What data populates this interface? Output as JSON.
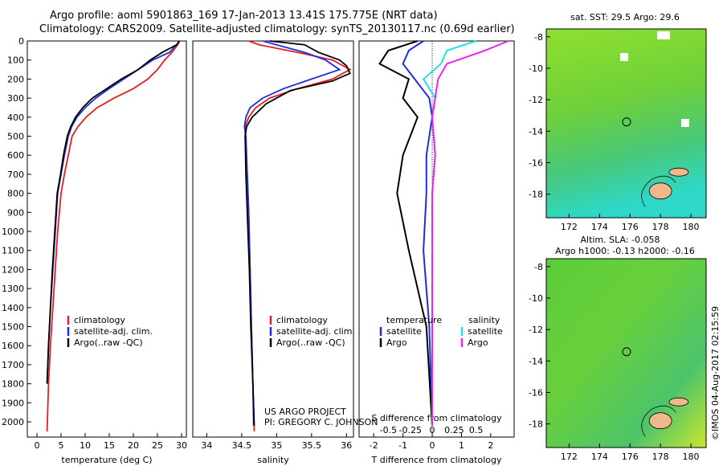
{
  "header": {
    "title_line1": "Argo profile: aoml 5901863_169 17-Jan-2013 13.41S 175.775E (NRT data)",
    "title_line2": "Climatology: CARS2009. Satellite-adjusted climatology: synTS_20130117.nc (0.69d earlier)"
  },
  "colors": {
    "climatology": "#e02020",
    "satellite": "#1f2de0",
    "argo": "#000000",
    "sat_salinity": "#22e0e8",
    "argo_salinity": "#ee22ee"
  },
  "chart_data": [
    {
      "type": "line",
      "name": "temperature",
      "xlabel": "temperature (deg C)",
      "ylabel": "",
      "xlim": [
        -2,
        31
      ],
      "ylim": [
        2080,
        0
      ],
      "xticks": [
        "0",
        "5",
        "10",
        "15",
        "20",
        "25",
        "30"
      ],
      "xtick_values": [
        0,
        5,
        10,
        15,
        20,
        25,
        30
      ],
      "yticks": [
        "0",
        "100",
        "200",
        "300",
        "400",
        "500",
        "600",
        "700",
        "800",
        "900",
        "1000",
        "1100",
        "1200",
        "1300",
        "1400",
        "1500",
        "1600",
        "1700",
        "1800",
        "1900",
        "2000"
      ],
      "ytick_values": [
        0,
        100,
        200,
        300,
        400,
        500,
        600,
        700,
        800,
        900,
        1000,
        1100,
        1200,
        1300,
        1400,
        1500,
        1600,
        1700,
        1800,
        1900,
        2000
      ],
      "legend": [
        "climatology",
        "satellite-adj. clim.",
        "Argo(..raw -QC)"
      ],
      "series": [
        {
          "name": "climatology",
          "x": [
            29.6,
            29.2,
            28.0,
            26.5,
            25.0,
            23.0,
            20.0,
            16.0,
            12.5,
            10.2,
            8.5,
            7.3,
            6.5,
            5.7,
            5.0,
            4.3,
            3.8,
            3.3,
            2.8,
            2.4,
            2.1
          ],
          "y": [
            0,
            20,
            60,
            100,
            150,
            200,
            250,
            300,
            350,
            400,
            450,
            500,
            600,
            700,
            800,
            1000,
            1200,
            1400,
            1600,
            1800,
            2050
          ]
        },
        {
          "name": "satellite-adj. clim.",
          "x": [
            29.6,
            29.0,
            27.5,
            24.0,
            21.0,
            18.0,
            15.0,
            12.2,
            10.0,
            8.3,
            7.2,
            6.5,
            5.7,
            5.0,
            4.3,
            3.8,
            3.3,
            2.8,
            2.4,
            2.1
          ],
          "y": [
            0,
            20,
            60,
            100,
            150,
            200,
            250,
            300,
            350,
            400,
            450,
            500,
            600,
            700,
            800,
            1000,
            1200,
            1400,
            1600,
            1800
          ]
        },
        {
          "name": "Argo(..raw -QC)",
          "x": [
            29.5,
            29.0,
            26.0,
            23.5,
            21.0,
            17.5,
            14.5,
            11.5,
            9.5,
            8.0,
            7.0,
            6.3,
            5.5,
            4.9,
            4.2,
            3.7,
            3.2,
            2.8,
            2.4,
            2.1
          ],
          "y": [
            0,
            20,
            60,
            100,
            150,
            200,
            250,
            300,
            350,
            400,
            450,
            500,
            600,
            700,
            800,
            1000,
            1200,
            1400,
            1600,
            1800
          ]
        }
      ]
    },
    {
      "type": "line",
      "name": "salinity",
      "xlabel": "salinity",
      "ylabel": "",
      "xlim": [
        33.8,
        36.1
      ],
      "ylim": [
        2080,
        0
      ],
      "xticks": [
        "34",
        "34.5",
        "35",
        "35.5",
        "36"
      ],
      "xtick_values": [
        34,
        34.5,
        35,
        35.5,
        36
      ],
      "legend": [
        "climatology",
        "satellite-adj. clim.",
        "Argo(..raw -QC)"
      ],
      "annotation_line1": "US ARGO PROJECT",
      "annotation_line2": "PI: GREGORY C. JOHNSON",
      "series": [
        {
          "name": "climatology",
          "x": [
            34.6,
            34.75,
            35.3,
            35.8,
            36.05,
            35.8,
            35.3,
            34.9,
            34.7,
            34.6,
            34.55,
            34.55,
            34.58,
            34.6,
            34.62,
            34.64,
            34.66,
            34.68
          ],
          "y": [
            0,
            20,
            60,
            100,
            150,
            200,
            250,
            300,
            350,
            400,
            450,
            500,
            700,
            900,
            1200,
            1500,
            1800,
            2050
          ]
        },
        {
          "name": "satellite-adj. clim.",
          "x": [
            34.8,
            35.0,
            35.4,
            35.7,
            35.9,
            35.5,
            35.1,
            34.8,
            34.62,
            34.56,
            34.54,
            34.56,
            34.58,
            34.6,
            34.62,
            34.64,
            34.66,
            34.67
          ],
          "y": [
            0,
            20,
            60,
            100,
            150,
            200,
            250,
            300,
            350,
            400,
            450,
            500,
            700,
            900,
            1200,
            1500,
            1800,
            2020
          ]
        },
        {
          "name": "Argo(..raw -QC)",
          "x": [
            34.9,
            35.4,
            35.6,
            35.9,
            36.0,
            36.05,
            35.8,
            35.2,
            34.85,
            34.65,
            34.57,
            34.55,
            34.56,
            34.58,
            34.61,
            34.63,
            34.66,
            34.68
          ],
          "y": [
            0,
            20,
            60,
            100,
            130,
            170,
            210,
            260,
            330,
            400,
            450,
            500,
            700,
            900,
            1200,
            1500,
            1800,
            2020
          ]
        }
      ]
    },
    {
      "type": "line",
      "name": "difference",
      "xlabel": "T difference from climatology",
      "ylabel": "",
      "top_label": "S difference from climatology",
      "xlim": [
        -2.5,
        2.8
      ],
      "ylim": [
        2080,
        0
      ],
      "xticks": [
        "-2",
        "-1",
        "0",
        "1",
        "2"
      ],
      "xtick_values": [
        -2,
        -1,
        0,
        1,
        2
      ],
      "top_ticks": [
        "-0.5",
        "-0.25",
        "0",
        "0.25",
        "0.5"
      ],
      "top_tick_values": [
        -1.5,
        -0.75,
        0,
        0.75,
        1.5
      ],
      "legend_left_title": "temperature",
      "legend_right_title": "salinity",
      "legend_left": [
        "satellite",
        "Argo"
      ],
      "legend_right": [
        "satellite",
        "Argo"
      ],
      "series": [
        {
          "name": "T satellite",
          "x": [
            -0.3,
            -0.8,
            -1.0,
            -0.6,
            -0.1,
            0.0,
            -0.2,
            -0.2,
            -0.3,
            -0.1,
            0.0
          ],
          "y": [
            0,
            50,
            120,
            200,
            300,
            400,
            600,
            800,
            1100,
            1500,
            2020
          ]
        },
        {
          "name": "T Argo",
          "x": [
            -0.5,
            -1.5,
            -1.8,
            -0.8,
            -1.0,
            -0.5,
            -1.0,
            -1.2,
            -0.8,
            -0.2,
            0.0
          ],
          "y": [
            0,
            50,
            120,
            200,
            300,
            400,
            600,
            800,
            1100,
            1500,
            2020
          ]
        },
        {
          "name": "S satellite",
          "x": [
            1.5,
            0.5,
            0.3,
            -0.3,
            0.1,
            0.0,
            0.1,
            0.0,
            0.0,
            0.0,
            0.0
          ],
          "y": [
            0,
            50,
            120,
            200,
            300,
            400,
            600,
            800,
            1100,
            1500,
            2020
          ]
        },
        {
          "name": "S Argo",
          "x": [
            2.6,
            1.8,
            0.5,
            0.2,
            0.1,
            0.0,
            0.1,
            0.0,
            0.0,
            0.0,
            0.0
          ],
          "y": [
            0,
            50,
            120,
            200,
            300,
            400,
            600,
            800,
            1100,
            1500,
            2020
          ]
        }
      ]
    },
    {
      "type": "heatmap",
      "name": "sst-map",
      "title": "sat. SST: 29.5  Argo: 29.6",
      "xlim": [
        170.5,
        181
      ],
      "ylim": [
        -19.5,
        -7.5
      ],
      "xticks": [
        "172",
        "174",
        "176",
        "178",
        "180"
      ],
      "xtick_values": [
        172,
        174,
        176,
        178,
        180
      ],
      "yticks": [
        "-8",
        "-10",
        "-12",
        "-14",
        "-16",
        "-18"
      ],
      "ytick_values": [
        -8,
        -10,
        -12,
        -14,
        -16,
        -18
      ],
      "profile_location": [
        175.775,
        -13.41
      ]
    },
    {
      "type": "heatmap",
      "name": "sla-map",
      "title_line1": "Altim. SLA: -0.058",
      "title_line2": "Argo h1000: -0.13 h2000: -0.16",
      "xlim": [
        170.5,
        181
      ],
      "ylim": [
        -19.5,
        -7.5
      ],
      "xticks": [
        "172",
        "174",
        "176",
        "178",
        "180"
      ],
      "xtick_values": [
        172,
        174,
        176,
        178,
        180
      ],
      "yticks": [
        "-8",
        "-10",
        "-12",
        "-14",
        "-16",
        "-18"
      ],
      "ytick_values": [
        -8,
        -10,
        -12,
        -14,
        -16,
        -18
      ],
      "profile_location": [
        175.775,
        -13.41
      ]
    }
  ],
  "footer": {
    "credit": "©IMOS 04-Aug-2017 02:15:59"
  }
}
